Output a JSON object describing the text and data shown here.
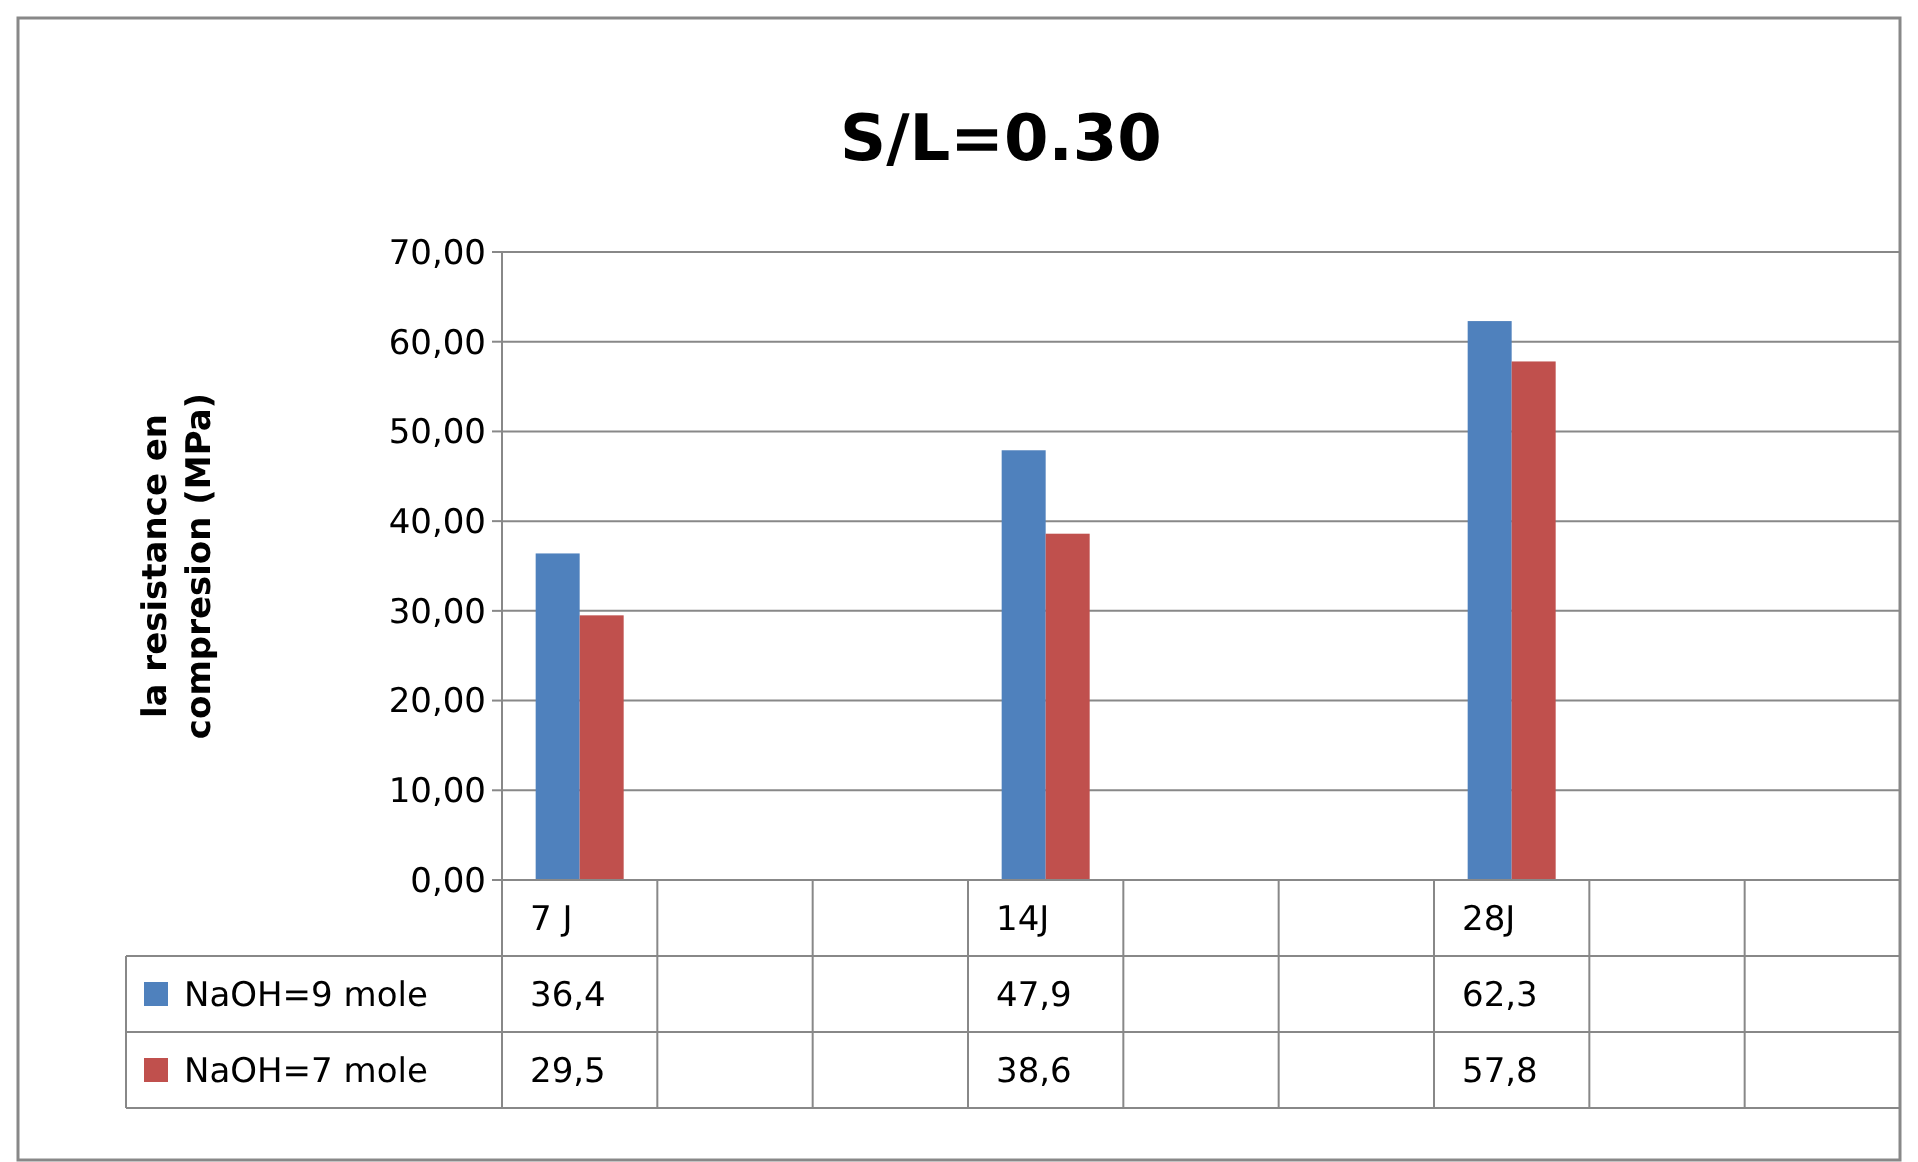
{
  "chart_data": {
    "type": "bar",
    "title": "S/L=0.30",
    "ylabel": "la resistance en compresion (MPa)",
    "categories": [
      "7 J",
      null,
      null,
      "14J",
      null,
      null,
      "28J",
      null,
      null
    ],
    "series": [
      {
        "name": "NaOH=9 mole",
        "color": "#4f81bd",
        "values": [
          36.4,
          null,
          null,
          47.9,
          null,
          null,
          62.3,
          null,
          null
        ],
        "value_labels": [
          "36,4",
          null,
          null,
          "47,9",
          null,
          null,
          "62,3",
          null,
          null
        ]
      },
      {
        "name": "NaOH=7 mole",
        "color": "#c0504d",
        "values": [
          29.5,
          null,
          null,
          38.6,
          null,
          null,
          57.8,
          null,
          null
        ],
        "value_labels": [
          "29,5",
          null,
          null,
          "38,6",
          null,
          null,
          "57,8",
          null,
          null
        ]
      }
    ],
    "ylim": [
      0,
      70
    ],
    "yticks": [
      {
        "value": 0,
        "label": "0,00"
      },
      {
        "value": 10,
        "label": "10,00"
      },
      {
        "value": 20,
        "label": "20,00"
      },
      {
        "value": 30,
        "label": "30,00"
      },
      {
        "value": 40,
        "label": "40,00"
      },
      {
        "value": 50,
        "label": "50,00"
      },
      {
        "value": 60,
        "label": "60,00"
      },
      {
        "value": 70,
        "label": "70,00"
      }
    ],
    "grid": "y",
    "legend": "bottom"
  }
}
